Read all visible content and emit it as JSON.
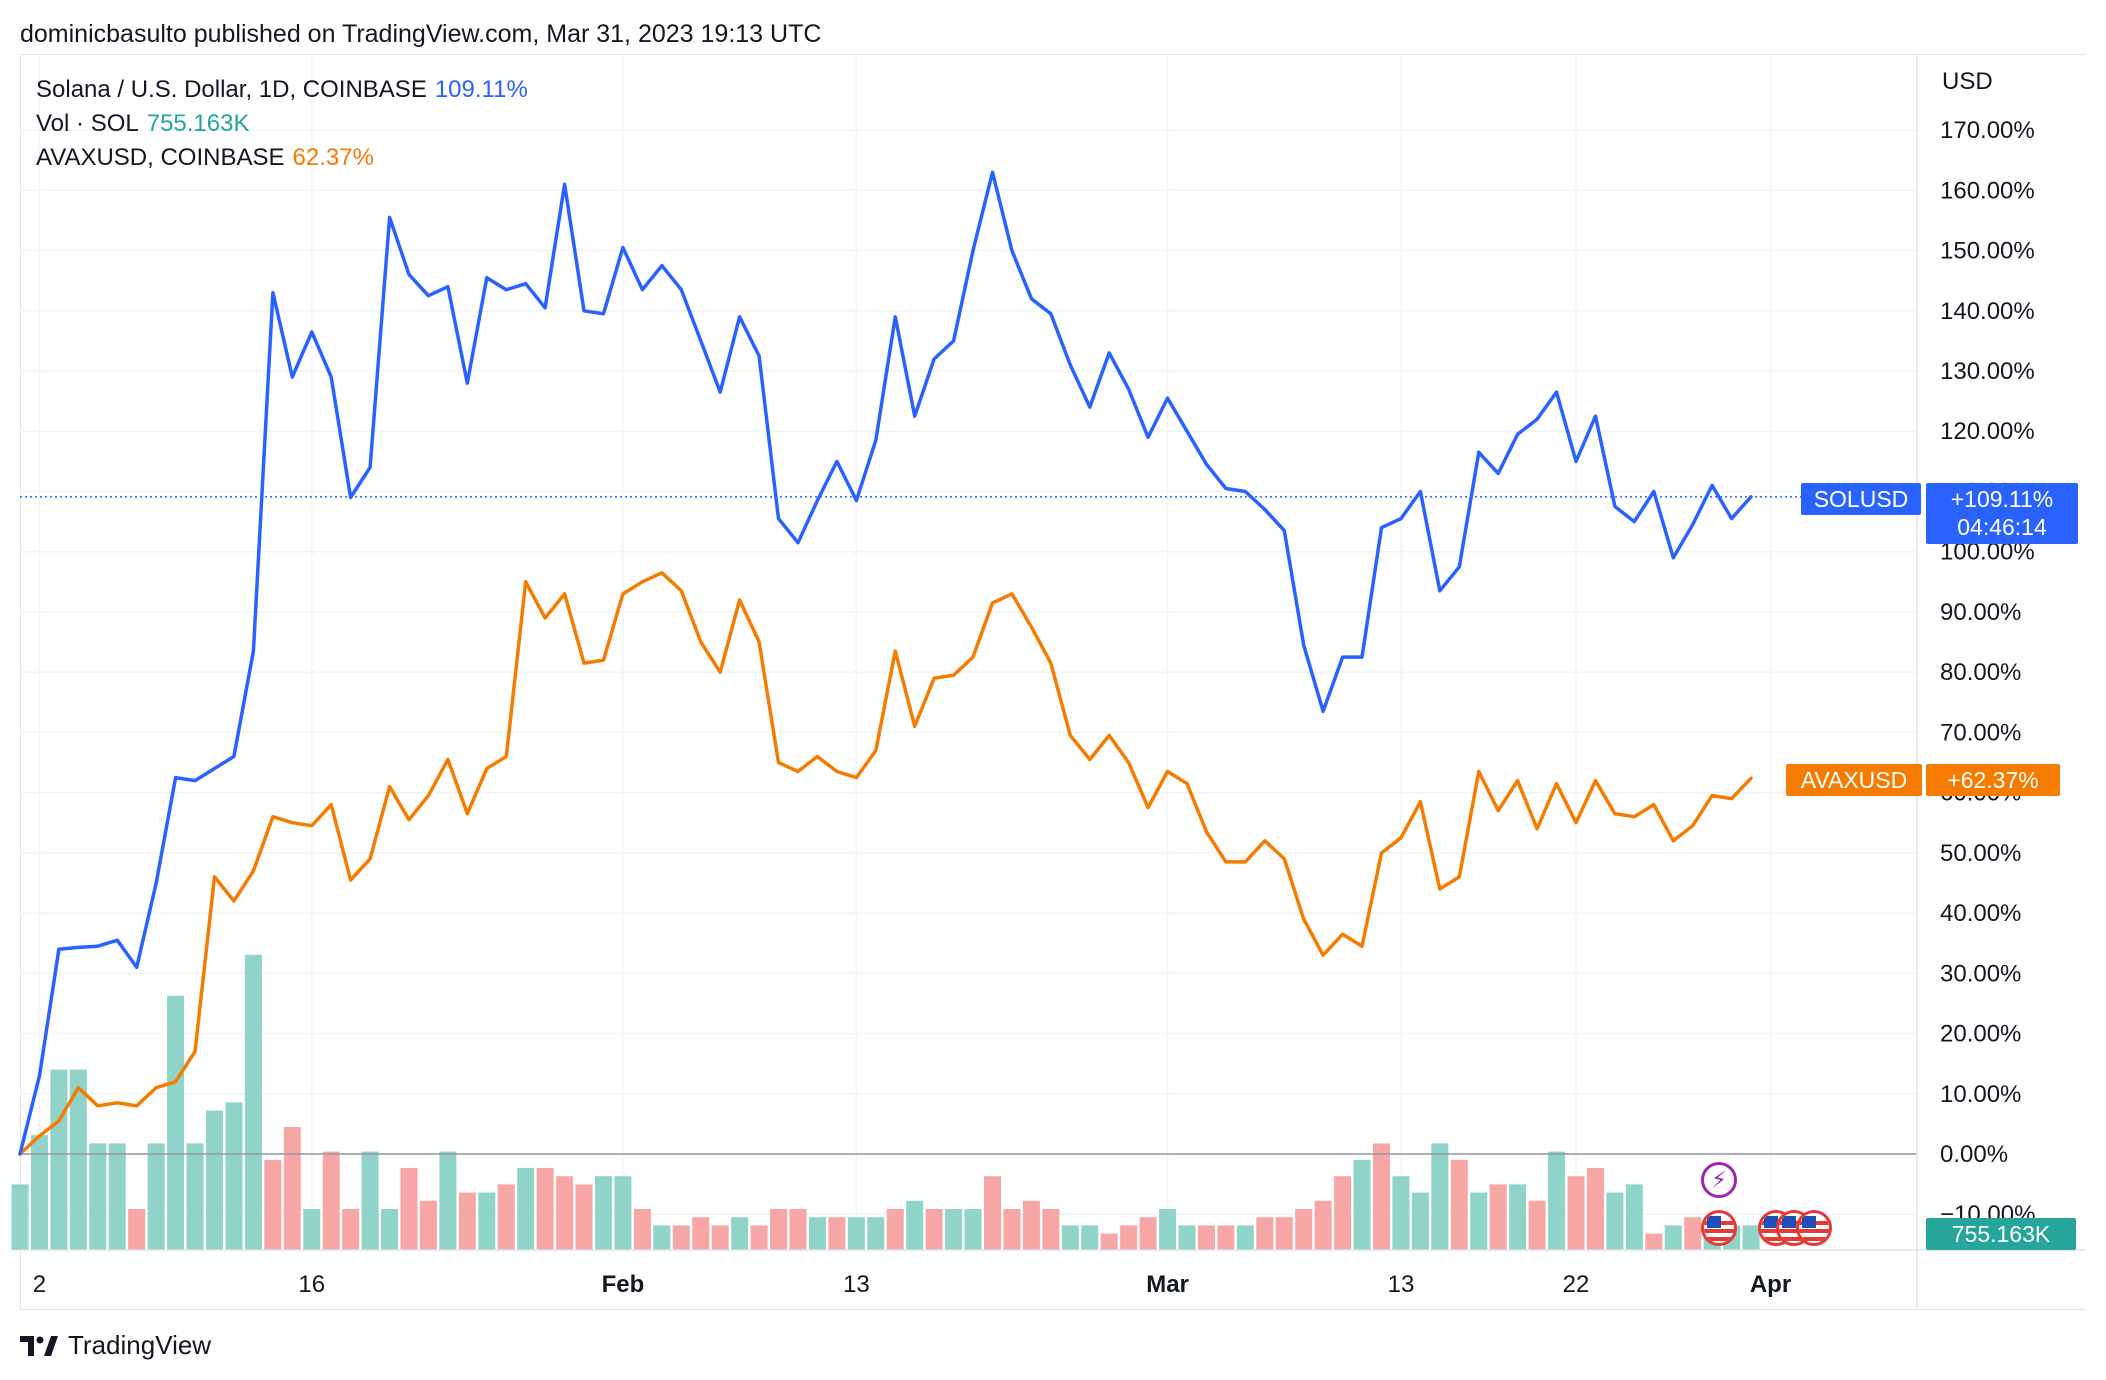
{
  "header": {
    "published_line": "dominicbasulto published on TradingView.com, Mar 31, 2023 19:13 UTC"
  },
  "legend": {
    "sol": {
      "label": "Solana / U.S. Dollar, 1D, COINBASE",
      "value": "109.11%"
    },
    "vol": {
      "label": "Vol · SOL",
      "value": "755.163K"
    },
    "avax": {
      "label": "AVAXUSD, COINBASE",
      "value": "62.37%"
    }
  },
  "price_tags": {
    "sol_symbol": "SOLUSD",
    "sol_value": "+109.11%",
    "sol_countdown": "04:46:14",
    "avax_symbol": "AVAXUSD",
    "avax_value": "+62.37%",
    "vol_value": "755.163K"
  },
  "footer": {
    "brand": "TradingView"
  },
  "colors": {
    "sol": "#2962ff",
    "avax": "#f57c00",
    "vol_up": "#8fd3c9",
    "vol_down": "#f7a6a6",
    "grid": "#f0f3fa"
  },
  "icons": {
    "event_bolt": "bolt-icon",
    "event_flag": "us-flag-icon"
  },
  "chart_data": {
    "type": "line",
    "title": "Solana / U.S. Dollar, 1D, COINBASE",
    "currency_label": "USD",
    "y_unit": "% change",
    "ylim": [
      -16,
      178
    ],
    "y_ticks": [
      170,
      160,
      150,
      140,
      130,
      120,
      110,
      100,
      90,
      80,
      70,
      60,
      50,
      40,
      30,
      20,
      10,
      0,
      -10
    ],
    "y_tick_labels": [
      "170.00%",
      "160.00%",
      "150.00%",
      "140.00%",
      "130.00%",
      "120.00%",
      "110.00%",
      "100.00%",
      "90.00%",
      "80.00%",
      "70.00%",
      "60.00%",
      "50.00%",
      "40.00%",
      "30.00%",
      "20.00%",
      "10.00%",
      "0.00%",
      "−10.00%"
    ],
    "x_range_days": [
      0,
      91
    ],
    "x_ticks": [
      {
        "day": 1,
        "label": "2",
        "bold": false
      },
      {
        "day": 15,
        "label": "16",
        "bold": false
      },
      {
        "day": 31,
        "label": "Feb",
        "bold": true
      },
      {
        "day": 43,
        "label": "13",
        "bold": false
      },
      {
        "day": 59,
        "label": "Mar",
        "bold": true
      },
      {
        "day": 71,
        "label": "13",
        "bold": false
      },
      {
        "day": 80,
        "label": "22",
        "bold": false
      },
      {
        "day": 90,
        "label": "Apr",
        "bold": true
      }
    ],
    "series": [
      {
        "name": "SOLUSD",
        "color": "#2962ff",
        "values": [
          0.0,
          13.0,
          34.0,
          34.3,
          34.5,
          35.5,
          31.0,
          45.0,
          62.5,
          62.0,
          64.0,
          66.0,
          83.5,
          143.0,
          129.0,
          136.5,
          129.0,
          109.0,
          114.0,
          155.5,
          146.0,
          142.5,
          144.0,
          128.0,
          145.5,
          143.5,
          144.5,
          140.5,
          161.0,
          140.0,
          139.5,
          150.5,
          143.5,
          147.5,
          143.5,
          135.0,
          126.5,
          139.0,
          132.5,
          105.5,
          101.5,
          108.5,
          115.0,
          108.5,
          118.5,
          139.0,
          122.5,
          132.0,
          135.0,
          150.0,
          163.0,
          150.0,
          142.0,
          139.5,
          131.0,
          124.0,
          133.0,
          127.0,
          119.0,
          125.5,
          120.0,
          114.5,
          110.5,
          110.0,
          107.0,
          103.5,
          84.5,
          73.5,
          82.5,
          82.5,
          104.0,
          105.5,
          110.0,
          93.5,
          97.5,
          116.5,
          113.0,
          119.5,
          122.0,
          126.5,
          115.0,
          122.5,
          107.5,
          105.0,
          110.0,
          99.0,
          104.5,
          111.0,
          105.5,
          109.11
        ]
      },
      {
        "name": "AVAXUSD",
        "color": "#f57c00",
        "values": [
          0.0,
          3.0,
          5.5,
          11.0,
          8.0,
          8.5,
          8.0,
          11.0,
          12.0,
          17.0,
          46.0,
          42.0,
          47.0,
          56.0,
          55.0,
          54.5,
          58.0,
          45.5,
          49.0,
          61.0,
          55.5,
          59.5,
          65.5,
          56.5,
          64.0,
          66.0,
          95.0,
          89.0,
          93.0,
          81.5,
          82.0,
          93.0,
          95.0,
          96.5,
          93.5,
          85.0,
          80.0,
          92.0,
          85.0,
          65.0,
          63.5,
          66.0,
          63.5,
          62.5,
          67.0,
          83.5,
          71.0,
          79.0,
          79.5,
          82.5,
          91.5,
          93.0,
          87.5,
          81.5,
          69.5,
          65.5,
          69.5,
          65.0,
          57.5,
          63.5,
          61.5,
          53.5,
          48.5,
          48.5,
          52.0,
          49.0,
          39.0,
          33.0,
          36.5,
          34.5,
          50.0,
          52.5,
          58.5,
          44.0,
          46.0,
          63.5,
          57.0,
          62.0,
          54.0,
          61.5,
          55.0,
          62.0,
          56.5,
          56.0,
          58.0,
          52.0,
          54.5,
          59.5,
          59.0,
          62.37
        ]
      }
    ],
    "volume": {
      "name": "Vol · SOL",
      "unit": "relative",
      "last_value": "755.163K",
      "values": [
        8,
        14,
        22,
        22,
        13,
        13,
        5,
        13,
        31,
        13,
        17,
        18,
        36,
        11,
        15,
        5,
        12,
        5,
        12,
        5,
        10,
        6,
        12,
        7,
        7,
        8,
        10,
        10,
        9,
        8,
        9,
        9,
        5,
        3,
        3,
        4,
        3,
        4,
        3,
        5,
        5,
        4,
        4,
        4,
        4,
        5,
        6,
        5,
        5,
        5,
        9,
        5,
        6,
        5,
        3,
        3,
        2,
        3,
        4,
        5,
        3,
        3,
        3,
        3,
        4,
        4,
        5,
        6,
        9,
        11,
        13,
        9,
        7,
        13,
        11,
        7,
        8,
        8,
        6,
        12,
        9,
        10,
        7,
        8,
        2,
        3,
        4,
        4,
        3,
        3
      ],
      "up": [
        true,
        true,
        true,
        true,
        true,
        true,
        false,
        true,
        true,
        true,
        true,
        true,
        true,
        false,
        false,
        true,
        false,
        false,
        true,
        true,
        false,
        false,
        true,
        false,
        true,
        false,
        true,
        false,
        false,
        false,
        true,
        true,
        false,
        true,
        false,
        false,
        false,
        true,
        false,
        false,
        false,
        true,
        false,
        true,
        true,
        false,
        true,
        false,
        true,
        true,
        false,
        false,
        false,
        false,
        true,
        true,
        false,
        false,
        false,
        true,
        true,
        false,
        false,
        true,
        false,
        false,
        false,
        false,
        false,
        true,
        false,
        true,
        true,
        true,
        false,
        true,
        false,
        true,
        false,
        true,
        false,
        false,
        true,
        true,
        false,
        true,
        false,
        true,
        true,
        true
      ]
    }
  }
}
